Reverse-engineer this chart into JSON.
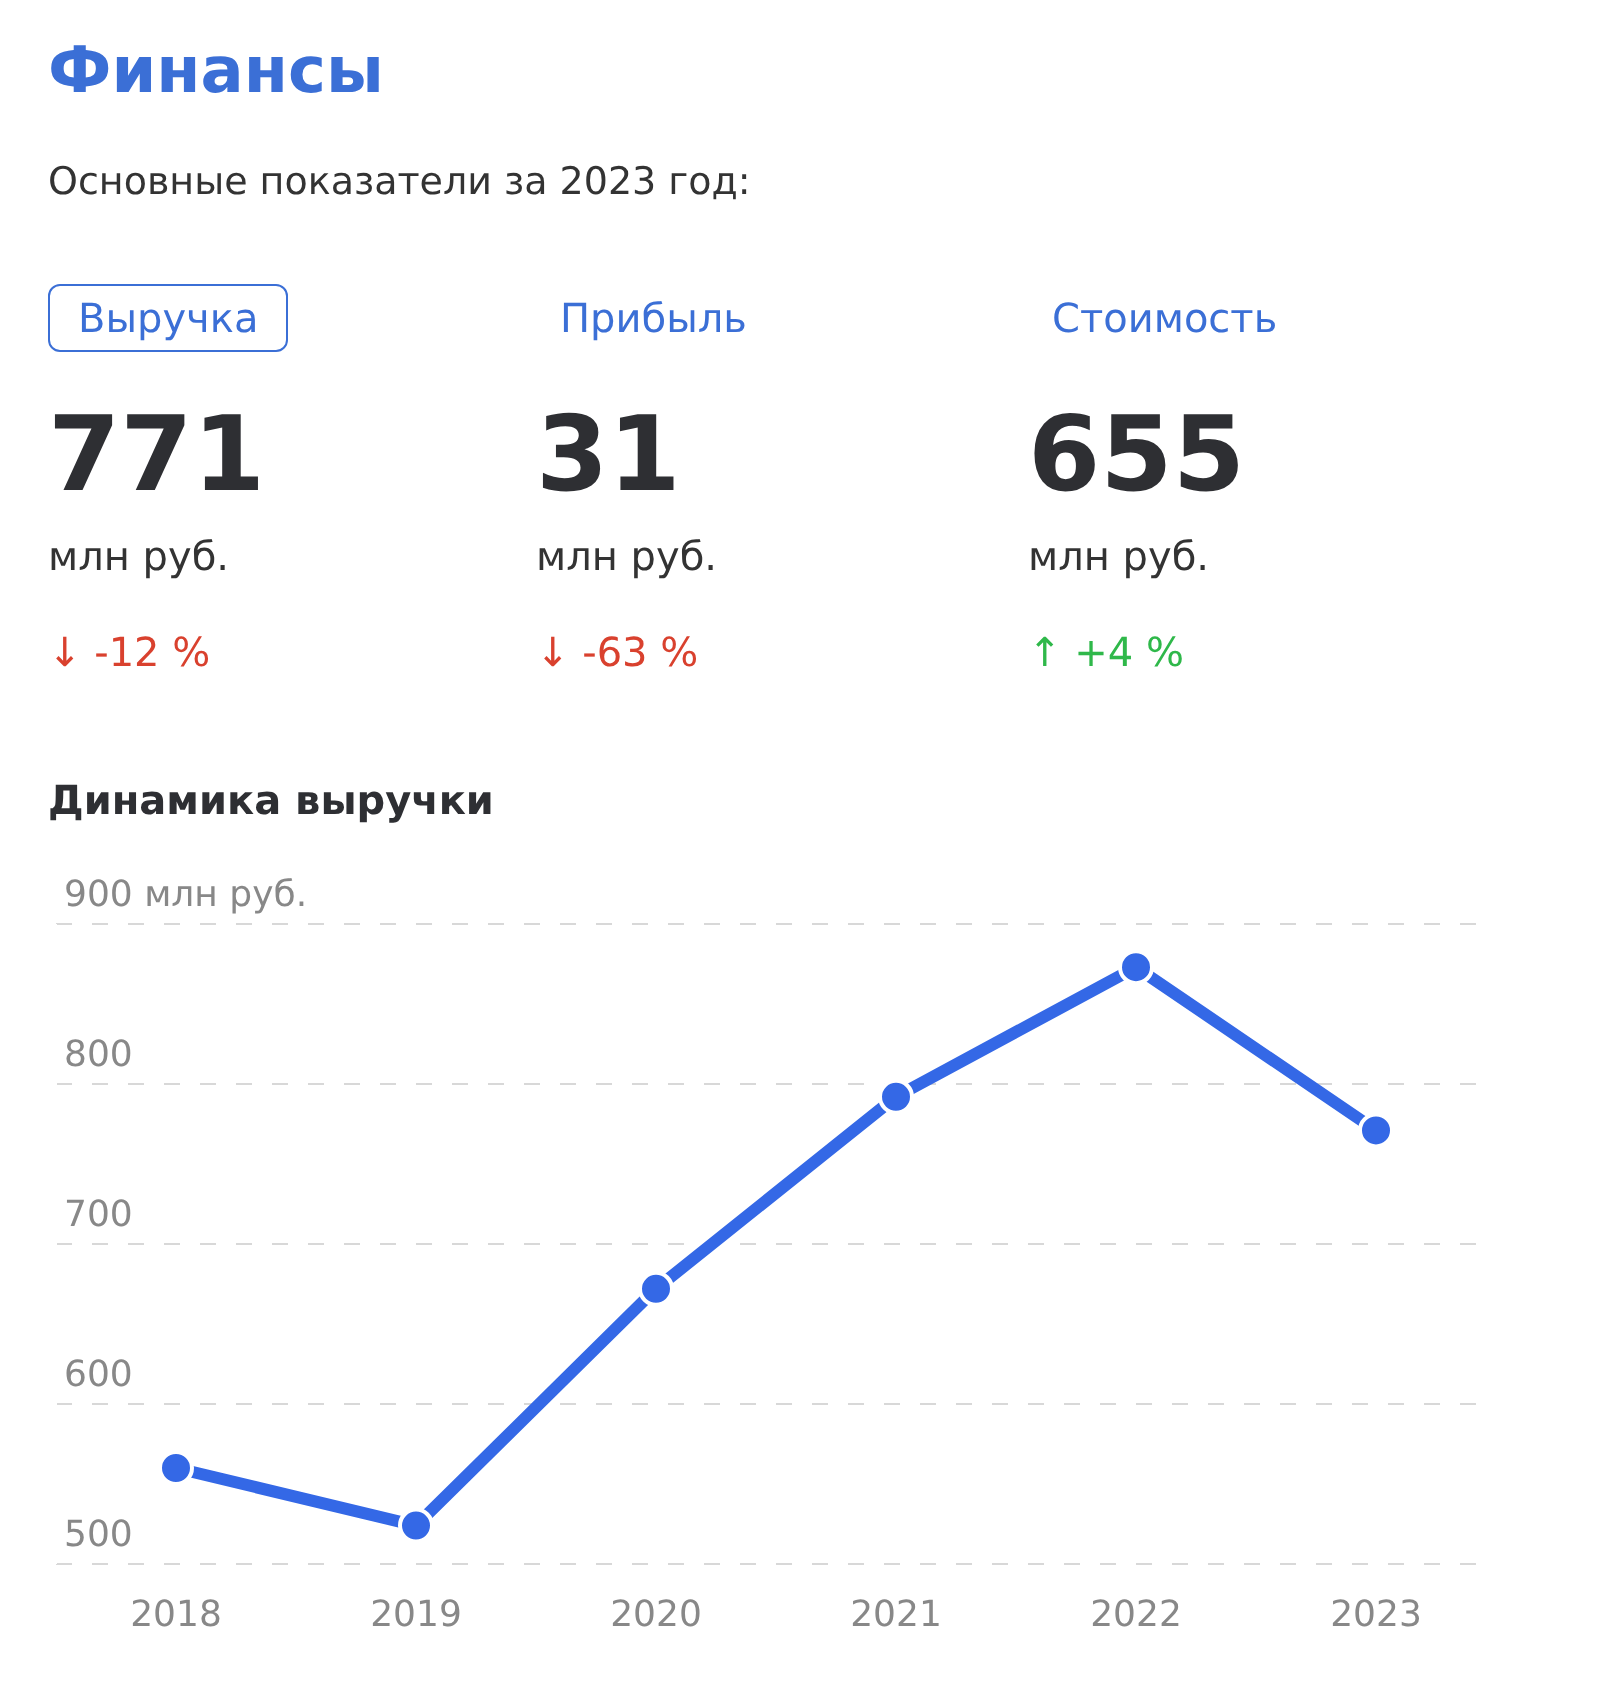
{
  "chart_data": [
    {
      "type": "other",
      "title": "Финансы",
      "subtitle": "Основные показатели за 2023 год:",
      "annotations": [
        "Выручка",
        "771",
        "млн руб.",
        "↓ -12 %",
        "Прибыль",
        "31",
        "млн руб.",
        "↓ -63 %",
        "Стоимость",
        "655",
        "млн руб.",
        "↑ +4 %"
      ],
      "colors": [
        "#d9412e",
        "#d9412e",
        "#2fb84a"
      ]
    },
    {
      "type": "line",
      "title": "Динамика выручки",
      "categories": [
        "2018",
        "2019",
        "2020",
        "2021",
        "2022",
        "2023"
      ],
      "series": [
        {
          "color": "#3468e6",
          "values": [
            560,
            524,
            672,
            792,
            873,
            771
          ]
        }
      ],
      "ylim": [
        500,
        900
      ],
      "yticks": [
        500,
        600,
        700,
        800,
        {
          "value": 900,
          "label": "900 млн руб."
        }
      ],
      "grid": "y",
      "marker": "circle",
      "line_style": "solid"
    }
  ]
}
